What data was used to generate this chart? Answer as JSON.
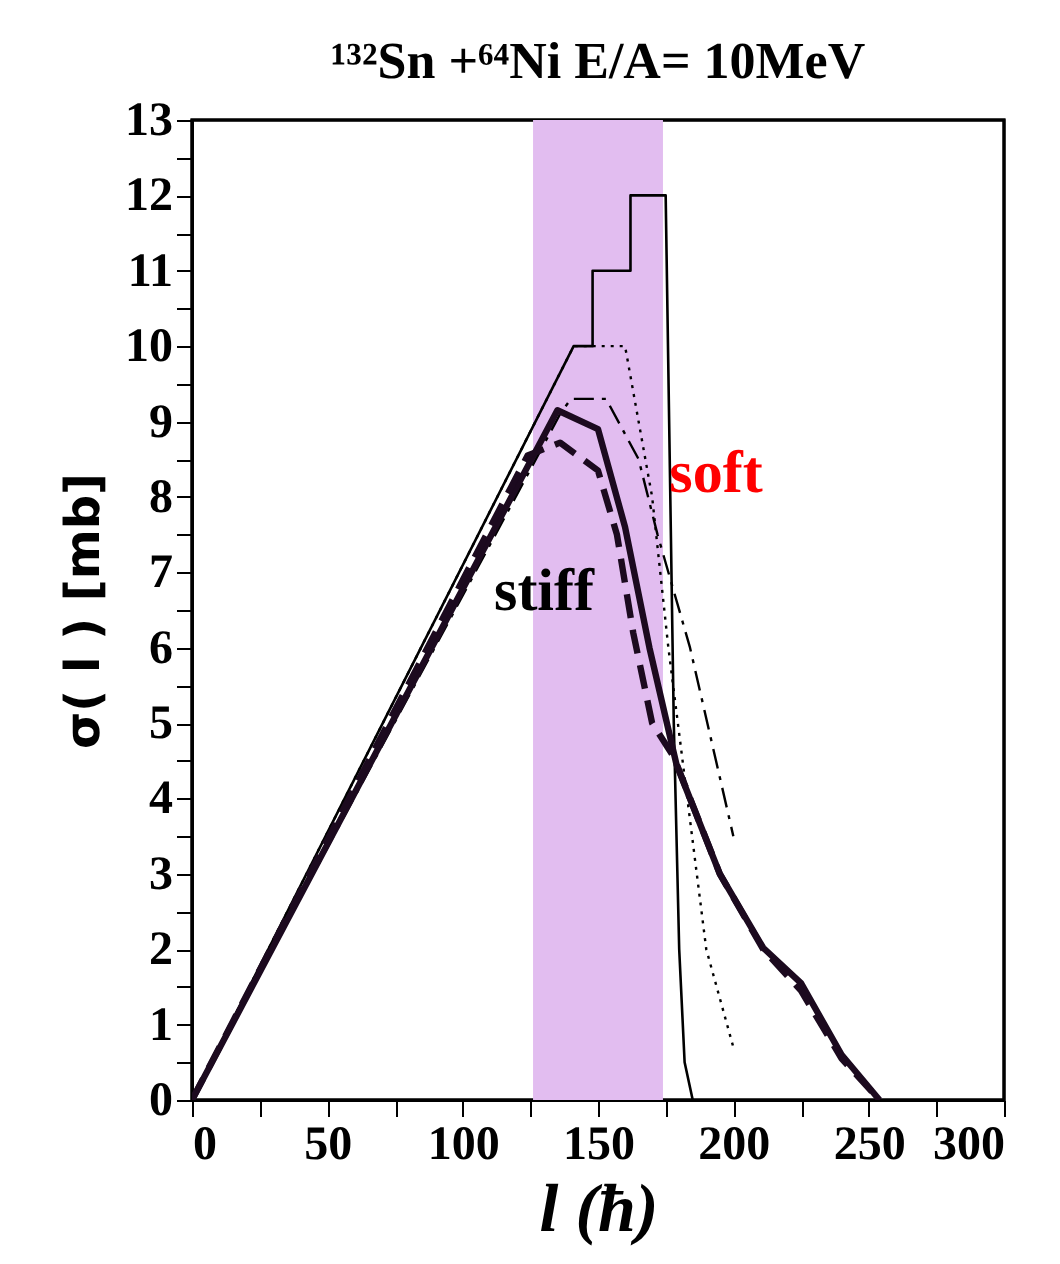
{
  "chart_data": {
    "type": "line",
    "title": "¹³²Sn +⁶⁴Ni  E/A= 10MeV",
    "xlabel": "l (ħ)",
    "ylabel": "σ( l )  [mb]",
    "xlim": [
      0,
      300
    ],
    "ylim": [
      0,
      13
    ],
    "xticks": [
      0,
      {
        "value": 25,
        "label": null
      },
      50,
      {
        "value": 75,
        "label": null
      },
      100,
      {
        "value": 125,
        "label": null
      },
      150,
      {
        "value": 175,
        "label": null
      },
      200,
      {
        "value": 225,
        "label": null
      },
      250,
      {
        "value": 275,
        "label": null
      },
      300
    ],
    "yticks": [
      0,
      {
        "value": 0.5,
        "label": null
      },
      1,
      {
        "value": 1.5,
        "label": null
      },
      2,
      {
        "value": 2.5,
        "label": null
      },
      3,
      {
        "value": 3.5,
        "label": null
      },
      4,
      {
        "value": 4.5,
        "label": null
      },
      5,
      {
        "value": 5.5,
        "label": null
      },
      6,
      {
        "value": 6.5,
        "label": null
      },
      7,
      {
        "value": 7.5,
        "label": null
      },
      8,
      {
        "value": 8.5,
        "label": null
      },
      9,
      {
        "value": 9.5,
        "label": null
      },
      10,
      {
        "value": 10.5,
        "label": null
      },
      11,
      {
        "value": 11.5,
        "label": null
      },
      12,
      {
        "value": 12.5,
        "label": null
      },
      13
    ],
    "grid": false,
    "legend": false,
    "marker": "none",
    "bands": [
      {
        "axis": "x",
        "from": 126,
        "to": 174,
        "color": "#e2bdf0"
      }
    ],
    "series": [
      {
        "color": "#000000",
        "line_style": "solid",
        "x": [
          0,
          141,
          148,
          148,
          162,
          162,
          175,
          178,
          180,
          182,
          185
        ],
        "values": [
          0,
          10,
          10,
          11,
          11,
          12,
          12,
          5,
          2,
          0.5,
          0
        ]
      },
      {
        "color": "#000000",
        "line_style": "dotted",
        "x": [
          0,
          141,
          160,
          170,
          176,
          183,
          190,
          200
        ],
        "values": [
          0,
          10,
          10,
          8,
          6,
          4,
          2,
          0.7
        ]
      },
      {
        "color": "#000000",
        "line_style": "dashdot",
        "x": [
          0,
          136,
          140,
          153,
          165,
          172,
          184,
          200
        ],
        "values": [
          0,
          9.1,
          9.3,
          9.3,
          8.5,
          7.5,
          6,
          3.5
        ]
      },
      {
        "color": "#1c0a1f",
        "line_style": "solid",
        "x": [
          0,
          135,
          150,
          160,
          169,
          179,
          195,
          211,
          225,
          240,
          254
        ],
        "values": [
          0,
          9.15,
          8.9,
          7.6,
          6,
          4.45,
          3.0,
          2.02,
          1.55,
          0.6,
          0
        ]
      },
      {
        "color": "#1c0a1f",
        "line_style": "dashed",
        "x": [
          0,
          124,
          136,
          150,
          157,
          163,
          170,
          178,
          195,
          211,
          225,
          240,
          254
        ],
        "values": [
          0,
          8.55,
          8.72,
          8.35,
          7.5,
          6.2,
          5.0,
          4.55,
          3.0,
          2.0,
          1.45,
          0.55,
          0
        ]
      }
    ],
    "annotations": [
      "soft",
      "stiff"
    ]
  }
}
